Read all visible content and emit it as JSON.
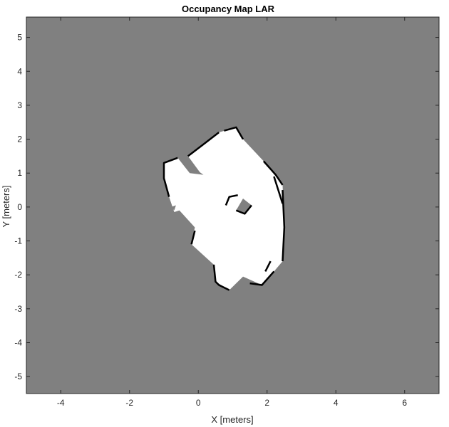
{
  "chart_data": {
    "type": "heatmap",
    "title": "Occupancy Map LAR",
    "xlabel": "X [meters]",
    "ylabel": "Y [meters]",
    "xlim": [
      -5,
      7
    ],
    "ylim": [
      -5.5,
      5.6
    ],
    "x_ticks": [
      -4,
      -2,
      0,
      2,
      4,
      6
    ],
    "y_ticks": [
      -5,
      -4,
      -3,
      -2,
      -1,
      0,
      1,
      2,
      3,
      4,
      5
    ],
    "grid": false,
    "legend": "none",
    "colors": {
      "unknown": "#808080",
      "free": "#ffffff",
      "occupied": "#000000",
      "axis": "#262626"
    },
    "free_region": [
      [
        -1.0,
        1.3
      ],
      [
        -0.6,
        1.45
      ],
      [
        0.1,
        0.95
      ],
      [
        -0.3,
        1.5
      ],
      [
        0.6,
        2.2
      ],
      [
        1.1,
        2.35
      ],
      [
        1.3,
        2.0
      ],
      [
        1.9,
        1.35
      ],
      [
        2.45,
        0.65
      ],
      [
        2.5,
        -0.6
      ],
      [
        2.45,
        -1.6
      ],
      [
        2.2,
        -1.9
      ],
      [
        1.85,
        -2.3
      ],
      [
        1.3,
        -2.05
      ],
      [
        0.9,
        -2.45
      ],
      [
        0.5,
        -2.2
      ],
      [
        0.45,
        -1.7
      ],
      [
        -0.2,
        -1.1
      ],
      [
        -0.1,
        -0.6
      ],
      [
        -0.55,
        -0.1
      ],
      [
        -0.7,
        -0.15
      ],
      [
        -0.85,
        0.3
      ],
      [
        -1.0,
        0.85
      ]
    ],
    "unknown_pockets": [
      [
        [
          -0.6,
          1.45
        ],
        [
          -0.2,
          1.2
        ],
        [
          0.15,
          0.95
        ],
        [
          -0.25,
          1.0
        ]
      ],
      [
        [
          -0.8,
          0.0
        ],
        [
          -0.65,
          0.05
        ],
        [
          -0.7,
          -0.1
        ]
      ],
      [
        [
          1.1,
          -0.1
        ],
        [
          1.3,
          0.25
        ],
        [
          1.55,
          0.05
        ],
        [
          1.35,
          -0.2
        ]
      ]
    ],
    "occupied_segments": [
      [
        [
          -0.6,
          1.45
        ],
        [
          -1.0,
          1.3
        ],
        [
          -1.0,
          0.85
        ],
        [
          -0.85,
          0.3
        ]
      ],
      [
        [
          -0.3,
          1.5
        ],
        [
          0.15,
          1.85
        ],
        [
          0.6,
          2.2
        ]
      ],
      [
        [
          0.75,
          2.25
        ],
        [
          1.1,
          2.35
        ],
        [
          1.3,
          2.0
        ]
      ],
      [
        [
          1.9,
          1.35
        ],
        [
          2.25,
          0.95
        ],
        [
          2.45,
          0.65
        ]
      ],
      [
        [
          2.45,
          0.5
        ],
        [
          2.5,
          -0.6
        ],
        [
          2.45,
          -1.6
        ]
      ],
      [
        [
          2.2,
          -1.9
        ],
        [
          1.85,
          -2.3
        ],
        [
          1.5,
          -2.25
        ]
      ],
      [
        [
          0.9,
          -2.45
        ],
        [
          0.6,
          -2.3
        ],
        [
          0.5,
          -2.2
        ],
        [
          0.45,
          -1.7
        ]
      ],
      [
        [
          -0.2,
          -1.1
        ],
        [
          -0.1,
          -0.7
        ]
      ],
      [
        [
          0.8,
          0.05
        ],
        [
          0.9,
          0.3
        ],
        [
          1.15,
          0.35
        ]
      ],
      [
        [
          1.1,
          -0.1
        ],
        [
          1.35,
          -0.2
        ],
        [
          1.55,
          0.05
        ]
      ],
      [
        [
          1.95,
          -1.9
        ],
        [
          2.1,
          -1.6
        ]
      ],
      [
        [
          2.2,
          0.9
        ],
        [
          2.45,
          0.1
        ]
      ]
    ]
  }
}
